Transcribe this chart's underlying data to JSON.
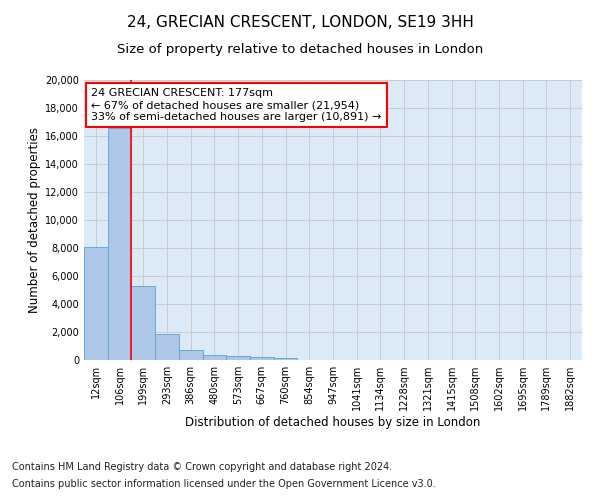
{
  "title_line1": "24, GRECIAN CRESCENT, LONDON, SE19 3HH",
  "title_line2": "Size of property relative to detached houses in London",
  "xlabel": "Distribution of detached houses by size in London",
  "ylabel": "Number of detached properties",
  "categories": [
    "12sqm",
    "106sqm",
    "199sqm",
    "293sqm",
    "386sqm",
    "480sqm",
    "573sqm",
    "667sqm",
    "760sqm",
    "854sqm",
    "947sqm",
    "1041sqm",
    "1134sqm",
    "1228sqm",
    "1321sqm",
    "1415sqm",
    "1508sqm",
    "1602sqm",
    "1695sqm",
    "1789sqm",
    "1882sqm"
  ],
  "values": [
    8100,
    16600,
    5300,
    1850,
    750,
    370,
    270,
    200,
    160,
    0,
    0,
    0,
    0,
    0,
    0,
    0,
    0,
    0,
    0,
    0,
    0
  ],
  "bar_color": "#aec6e8",
  "bar_edge_color": "#5a9fd4",
  "vline_x": 1.5,
  "vline_color": "red",
  "annotation_text": "24 GRECIAN CRESCENT: 177sqm\n← 67% of detached houses are smaller (21,954)\n33% of semi-detached houses are larger (10,891) →",
  "annotation_box_color": "white",
  "annotation_box_edge_color": "red",
  "ylim": [
    0,
    20000
  ],
  "yticks": [
    0,
    2000,
    4000,
    6000,
    8000,
    10000,
    12000,
    14000,
    16000,
    18000,
    20000
  ],
  "grid_color": "#cccccc",
  "background_color": "#dce9f7",
  "footer_line1": "Contains HM Land Registry data © Crown copyright and database right 2024.",
  "footer_line2": "Contains public sector information licensed under the Open Government Licence v3.0.",
  "title_fontsize": 11,
  "subtitle_fontsize": 9.5,
  "axis_label_fontsize": 8.5,
  "tick_fontsize": 7,
  "annotation_fontsize": 8,
  "footer_fontsize": 7
}
